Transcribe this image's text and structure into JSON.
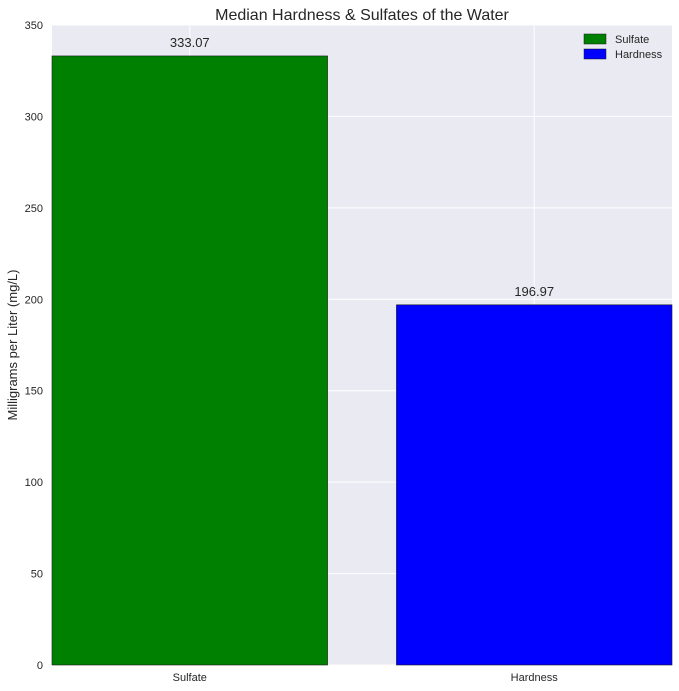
{
  "chart_data": {
    "type": "bar",
    "title": "Median Hardness & Sulfates of the Water",
    "xlabel": "",
    "ylabel": "Milligrams per Liter (mg/L)",
    "categories": [
      "Sulfate",
      "Hardness"
    ],
    "values": [
      333.07,
      196.97
    ],
    "value_labels": [
      "333.07",
      "196.97"
    ],
    "colors": [
      "#008000",
      "#0000ff"
    ],
    "ylim": [
      0,
      350
    ],
    "yticks": [
      0,
      50,
      100,
      150,
      200,
      250,
      300,
      350
    ],
    "ytick_labels": [
      "0",
      "50",
      "100",
      "150",
      "200",
      "250",
      "300",
      "350"
    ],
    "grid": true,
    "legend": {
      "placement": "top-right",
      "entries": [
        {
          "label": "Sulfate",
          "color": "#008000"
        },
        {
          "label": "Hardness",
          "color": "#0000ff"
        }
      ]
    }
  }
}
